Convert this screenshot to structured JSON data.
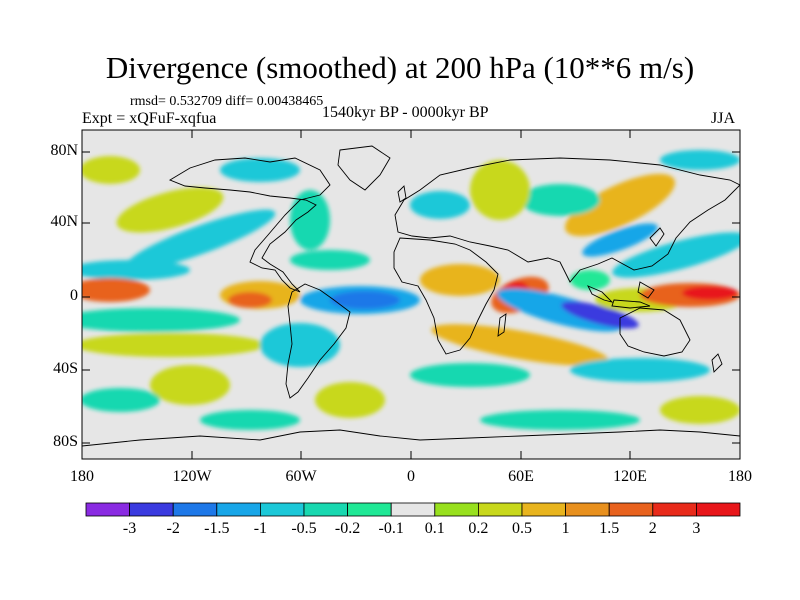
{
  "title": "Divergence (smoothed) at 200 hPa (10**6 m/s)",
  "stats": "rmsd= 0.532709 diff= 0.00438465",
  "experiment": "Expt = xQFuF-xqfua",
  "period": "1540kyr BP - 0000kyr BP",
  "season": "JJA",
  "map": {
    "lon_range": [
      -180,
      180
    ],
    "lat_range": [
      -90,
      90
    ],
    "y_ticks": [
      "80N",
      "40N",
      "0",
      "40S",
      "80S"
    ],
    "x_ticks": [
      "180",
      "120W",
      "60W",
      "0",
      "60E",
      "120E",
      "180"
    ]
  },
  "colorbar": {
    "labels": [
      "-3",
      "-2",
      "-1.5",
      "-1",
      "-0.5",
      "-0.2",
      "-0.1",
      "0.1",
      "0.2",
      "0.5",
      "1",
      "1.5",
      "2",
      "3"
    ],
    "colors": [
      "#8a2be2",
      "#3a3adf",
      "#1e78e8",
      "#18a6e8",
      "#1cc8d8",
      "#18d8b0",
      "#20e896",
      "#e6e6e6",
      "#98e01e",
      "#c8d81c",
      "#e8b41e",
      "#e8901e",
      "#e8621e",
      "#e82a1a",
      "#e8161a"
    ]
  },
  "palette": {
    "neutral": "#e6e6e6",
    "pos1": "#98e01e",
    "pos2": "#c8d81c",
    "pos3": "#e8b41e",
    "pos4": "#e8621e",
    "pos5": "#e8161a",
    "neg1": "#20e896",
    "neg2": "#18d8b0",
    "neg3": "#1cc8d8",
    "neg4": "#18a6e8",
    "neg5": "#1e78e8",
    "neg6": "#3a3adf"
  }
}
